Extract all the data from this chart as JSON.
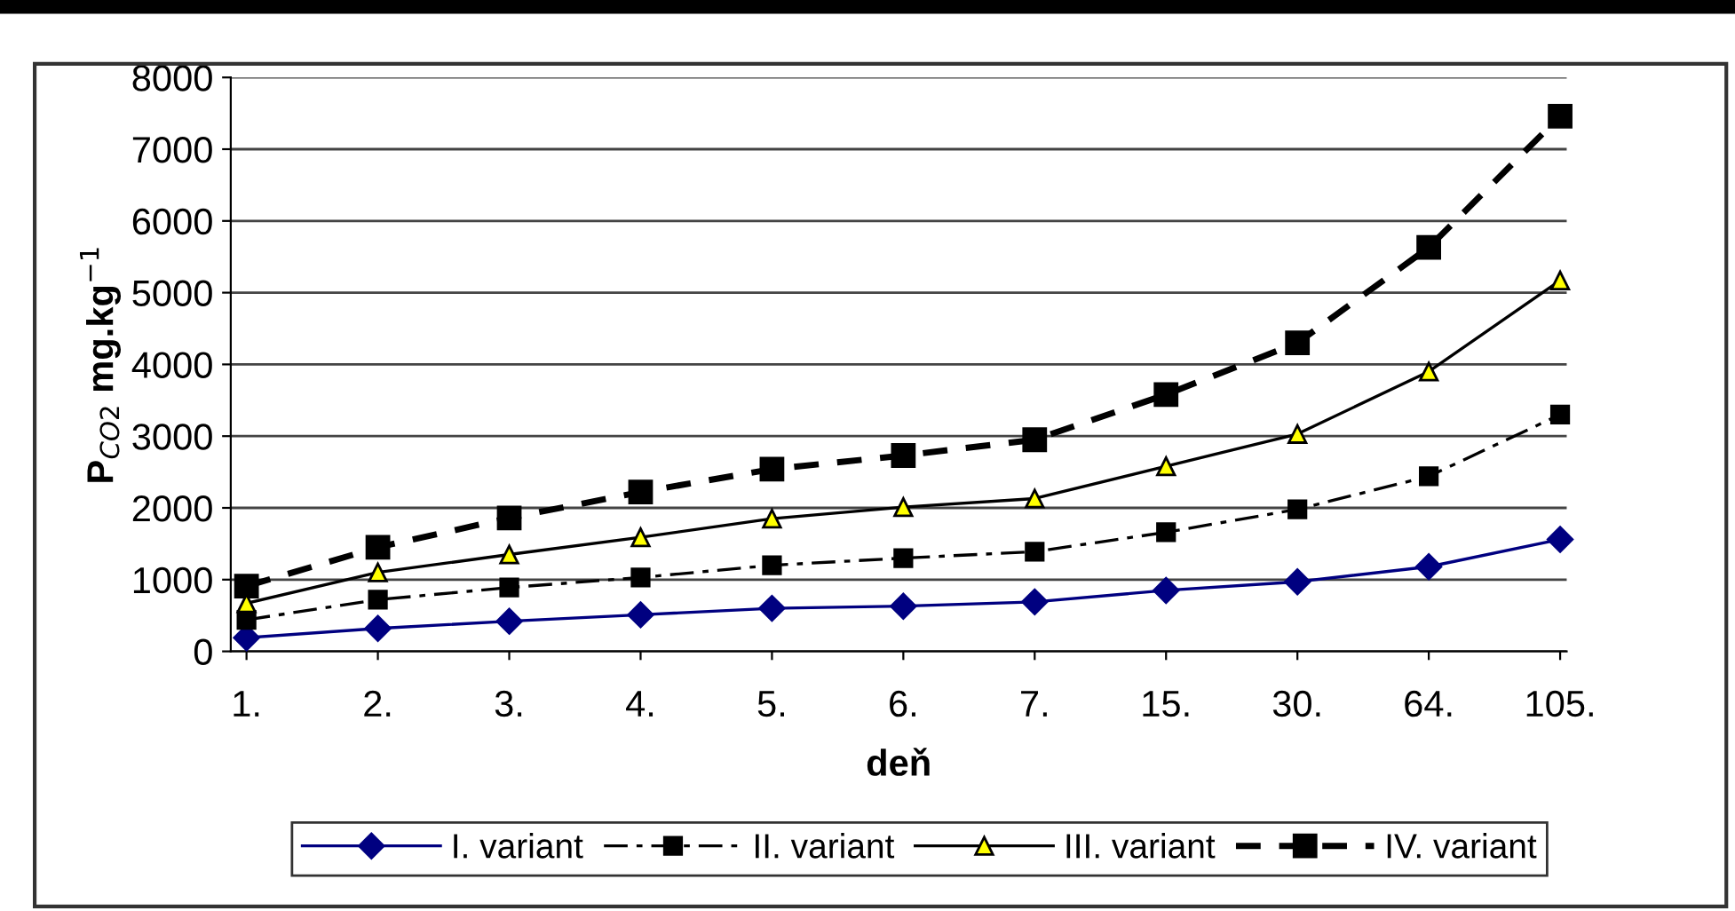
{
  "chart_data": {
    "type": "line",
    "xlabel": "deň",
    "ylabel": "P$_{CO2}$ mg.kg$^{−1}$",
    "categories": [
      "1.",
      "2.",
      "3.",
      "4.",
      "5.",
      "6.",
      "7.",
      "15.",
      "30.",
      "64.",
      "105."
    ],
    "ylim": [
      0,
      8000
    ],
    "yticks": [
      0,
      1000,
      2000,
      3000,
      4000,
      5000,
      6000,
      7000,
      8000
    ],
    "grid": "y",
    "legend": "bottom",
    "series": [
      {
        "name": "I. variant",
        "color": "#000080",
        "marker": "diamond",
        "line_style": "solid",
        "values": [
          190,
          320,
          420,
          510,
          600,
          630,
          690,
          850,
          970,
          1180,
          1560
        ]
      },
      {
        "name": "II. variant",
        "color": "#000000",
        "marker": "square",
        "line_style": "dashdot",
        "values": [
          440,
          720,
          890,
          1030,
          1200,
          1300,
          1390,
          1660,
          1980,
          2440,
          3300
        ]
      },
      {
        "name": "III. variant",
        "color": "#000000",
        "marker": "triangle",
        "line_style": "solid",
        "values": [
          670,
          1100,
          1350,
          1590,
          1850,
          2010,
          2130,
          2580,
          3030,
          3900,
          5170
        ]
      },
      {
        "name": "IV. variant",
        "color": "#000000",
        "marker": "square",
        "line_style": "dashed",
        "values": [
          910,
          1450,
          1860,
          2220,
          2540,
          2730,
          2950,
          3580,
          4300,
          5630,
          7460
        ]
      }
    ]
  }
}
